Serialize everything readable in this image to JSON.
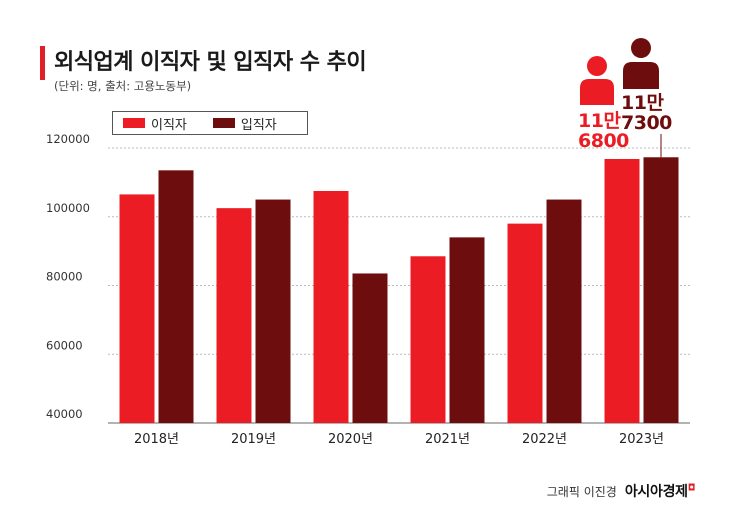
{
  "header": {
    "title": "외식업계 이직자 및 입직자 수 추이",
    "subtitle": "(단위: 명, 출처: 고용노동부)"
  },
  "legend": {
    "series1": "이직자",
    "series2": "입직자"
  },
  "callouts": {
    "leavers": {
      "line1": "11만",
      "line2": "6800"
    },
    "joiners": {
      "line1": "11만",
      "line2": "7300"
    }
  },
  "credit": {
    "graphic": "그래픽 이진경",
    "brand": "아시아경제"
  },
  "colors": {
    "series1": "#ec1c24",
    "series2": "#6e0d0d",
    "accent": "#e02027",
    "grid": "#bbbbbb"
  },
  "icons": [
    "person-icon-red",
    "person-icon-dark"
  ],
  "chart_data": {
    "type": "bar",
    "categories": [
      "2018년",
      "2019년",
      "2020년",
      "2021년",
      "2022년",
      "2023년"
    ],
    "series": [
      {
        "name": "이직자",
        "values": [
          106500,
          102500,
          107500,
          88500,
          98000,
          116800
        ]
      },
      {
        "name": "입직자",
        "values": [
          113500,
          105000,
          83500,
          94000,
          105000,
          117300
        ]
      }
    ],
    "yticks": [
      40000,
      60000,
      80000,
      100000,
      120000
    ],
    "ylim": [
      40000,
      120000
    ],
    "grid": true,
    "legend_position": "top-left"
  }
}
